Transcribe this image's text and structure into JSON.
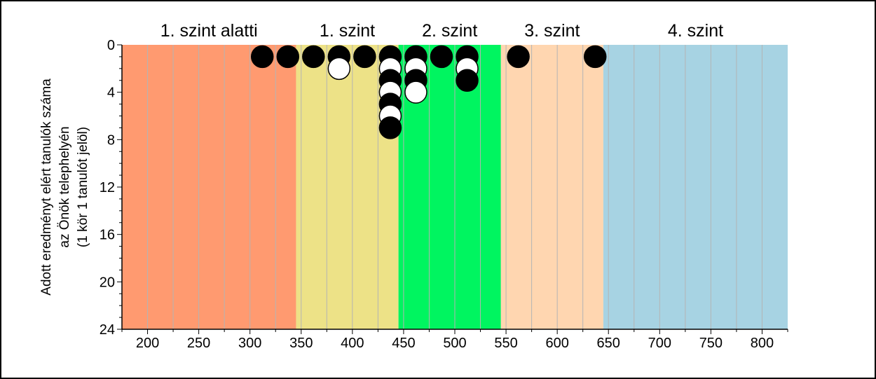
{
  "chart_data": {
    "type": "scatter",
    "ylabel_lines": [
      "Adott eredményt elért tanulók száma",
      "az Önök telephelyén",
      "(1 kör 1 tanulót jelöl)"
    ],
    "xlim": [
      175,
      825
    ],
    "ylim": [
      0,
      24
    ],
    "y_inverted": true,
    "x_ticks": [
      200,
      250,
      300,
      350,
      400,
      450,
      500,
      550,
      600,
      650,
      700,
      750,
      800
    ],
    "y_ticks": [
      0,
      4,
      8,
      12,
      16,
      20,
      24
    ],
    "grid_x_step": 25,
    "bands": [
      {
        "label": "1. szint alatti",
        "from": 175,
        "to": 345,
        "color": "#ff9a70"
      },
      {
        "label": "1. szint",
        "from": 345,
        "to": 445,
        "color": "#ede287"
      },
      {
        "label": "2. szint",
        "from": 445,
        "to": 545,
        "color": "#00f560"
      },
      {
        "label": "3. szint",
        "from": 545,
        "to": 645,
        "color": "#ffd6b0"
      },
      {
        "label": "4. szint",
        "from": 645,
        "to": 825,
        "color": "#a7d3e3"
      }
    ],
    "points": [
      {
        "x": 312,
        "y": 1,
        "fill": "black"
      },
      {
        "x": 337,
        "y": 1,
        "fill": "black"
      },
      {
        "x": 362,
        "y": 1,
        "fill": "black"
      },
      {
        "x": 387,
        "y": 1,
        "fill": "black"
      },
      {
        "x": 387,
        "y": 2,
        "fill": "white"
      },
      {
        "x": 412,
        "y": 1,
        "fill": "black"
      },
      {
        "x": 437,
        "y": 1,
        "fill": "black"
      },
      {
        "x": 437,
        "y": 2,
        "fill": "white"
      },
      {
        "x": 437,
        "y": 3,
        "fill": "black"
      },
      {
        "x": 437,
        "y": 4,
        "fill": "white"
      },
      {
        "x": 437,
        "y": 5,
        "fill": "black"
      },
      {
        "x": 437,
        "y": 6,
        "fill": "white"
      },
      {
        "x": 437,
        "y": 7,
        "fill": "black"
      },
      {
        "x": 462,
        "y": 1,
        "fill": "black"
      },
      {
        "x": 462,
        "y": 2,
        "fill": "white"
      },
      {
        "x": 462,
        "y": 3,
        "fill": "black"
      },
      {
        "x": 462,
        "y": 4,
        "fill": "white"
      },
      {
        "x": 487,
        "y": 1,
        "fill": "black"
      },
      {
        "x": 512,
        "y": 1,
        "fill": "black"
      },
      {
        "x": 512,
        "y": 2,
        "fill": "white"
      },
      {
        "x": 512,
        "y": 3,
        "fill": "black"
      },
      {
        "x": 562,
        "y": 1,
        "fill": "black"
      },
      {
        "x": 637,
        "y": 1,
        "fill": "black"
      }
    ]
  }
}
